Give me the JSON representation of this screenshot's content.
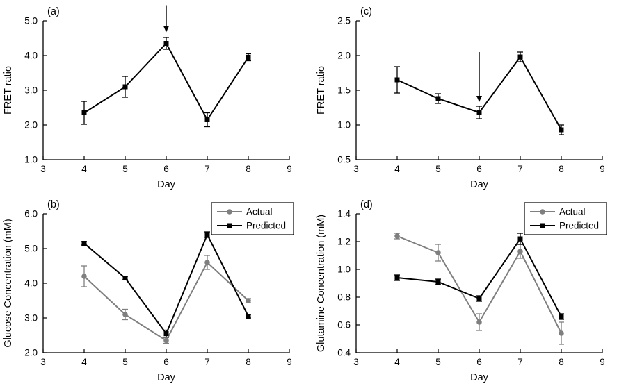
{
  "figure": {
    "background": "#ffffff",
    "axis_color": "#000000"
  },
  "colors": {
    "actual": "#7f7f7f",
    "predicted": "#000000"
  },
  "chart_data": [
    {
      "id": "a",
      "type": "line",
      "panel_label": "(a)",
      "xlabel": "Day",
      "ylabel": "FRET ratio",
      "xlim": [
        3,
        9
      ],
      "ylim": [
        1.0,
        5.0
      ],
      "xticks": [
        3,
        4,
        5,
        6,
        7,
        8,
        9
      ],
      "xtick_labels": [
        "3",
        "4",
        "5",
        "6",
        "7",
        "8",
        "9"
      ],
      "yticks": [
        1.0,
        2.0,
        3.0,
        4.0,
        5.0
      ],
      "ytick_labels": [
        "1.0",
        "2.0",
        "3.0",
        "4.0",
        "5.0"
      ],
      "x": [
        4,
        5,
        6,
        7,
        8
      ],
      "series": [
        {
          "name": "FRET ratio",
          "color": "#000000",
          "marker": "square",
          "values": [
            2.35,
            3.1,
            4.35,
            2.15,
            3.95
          ],
          "errors": [
            0.33,
            0.3,
            0.17,
            0.2,
            0.1
          ]
        }
      ],
      "arrow": {
        "x": 6,
        "y_from": 5.45,
        "y_to": 4.67
      },
      "legend": false
    },
    {
      "id": "c",
      "type": "line",
      "panel_label": "(c)",
      "xlabel": "Day",
      "ylabel": "FRET ratio",
      "xlim": [
        3,
        9
      ],
      "ylim": [
        0.5,
        2.5
      ],
      "xticks": [
        3,
        4,
        5,
        6,
        7,
        8,
        9
      ],
      "xtick_labels": [
        "3",
        "4",
        "5",
        "6",
        "7",
        "8",
        "9"
      ],
      "yticks": [
        0.5,
        1.0,
        1.5,
        2.0,
        2.5
      ],
      "ytick_labels": [
        "0.5",
        "1.0",
        "1.5",
        "2.0",
        "2.5"
      ],
      "x": [
        4,
        5,
        6,
        7,
        8
      ],
      "series": [
        {
          "name": "FRET ratio",
          "color": "#000000",
          "marker": "square",
          "values": [
            1.65,
            1.38,
            1.18,
            1.98,
            0.93
          ],
          "errors": [
            0.19,
            0.07,
            0.09,
            0.07,
            0.07
          ]
        }
      ],
      "arrow": {
        "x": 6,
        "y_from": 2.05,
        "y_to": 1.33
      },
      "legend": false
    },
    {
      "id": "b",
      "type": "line",
      "panel_label": "(b)",
      "xlabel": "Day",
      "ylabel": "Glucose Concentration (mM)",
      "xlim": [
        3,
        9
      ],
      "ylim": [
        2.0,
        6.0
      ],
      "xticks": [
        3,
        4,
        5,
        6,
        7,
        8,
        9
      ],
      "xtick_labels": [
        "3",
        "4",
        "5",
        "6",
        "7",
        "8",
        "9"
      ],
      "yticks": [
        2.0,
        3.0,
        4.0,
        5.0,
        6.0
      ],
      "ytick_labels": [
        "2.0",
        "3.0",
        "4.0",
        "5.0",
        "6.0"
      ],
      "x": [
        4,
        5,
        6,
        7,
        8
      ],
      "series": [
        {
          "name": "Actual",
          "color": "#7f7f7f",
          "marker": "circle",
          "values": [
            4.2,
            3.1,
            2.35,
            4.6,
            3.5
          ],
          "errors": [
            0.3,
            0.15,
            0.08,
            0.2,
            0.06
          ]
        },
        {
          "name": "Predicted",
          "color": "#000000",
          "marker": "square",
          "values": [
            5.15,
            4.15,
            2.55,
            5.4,
            3.05
          ],
          "errors": [
            0.05,
            0.05,
            0.1,
            0.08,
            0.05
          ]
        }
      ],
      "arrow": null,
      "legend": true
    },
    {
      "id": "d",
      "type": "line",
      "panel_label": "(d)",
      "xlabel": "Day",
      "ylabel": "Glutamine Concentration (mM)",
      "xlim": [
        3,
        9
      ],
      "ylim": [
        0.4,
        1.4
      ],
      "xticks": [
        3,
        4,
        5,
        6,
        7,
        8,
        9
      ],
      "xtick_labels": [
        "3",
        "4",
        "5",
        "6",
        "7",
        "8",
        "9"
      ],
      "yticks": [
        0.4,
        0.6,
        0.8,
        1.0,
        1.2,
        1.4
      ],
      "ytick_labels": [
        "0.4",
        "0.6",
        "0.8",
        "1.0",
        "1.2",
        "1.4"
      ],
      "x": [
        4,
        5,
        6,
        7,
        8
      ],
      "series": [
        {
          "name": "Actual",
          "color": "#7f7f7f",
          "marker": "circle",
          "values": [
            1.24,
            1.12,
            0.62,
            1.13,
            0.54
          ],
          "errors": [
            0.02,
            0.06,
            0.06,
            0.05,
            0.08
          ]
        },
        {
          "name": "Predicted",
          "color": "#000000",
          "marker": "square",
          "values": [
            0.94,
            0.91,
            0.79,
            1.22,
            0.66
          ],
          "errors": [
            0.02,
            0.02,
            0.02,
            0.04,
            0.02
          ]
        }
      ],
      "arrow": null,
      "legend": true
    }
  ]
}
